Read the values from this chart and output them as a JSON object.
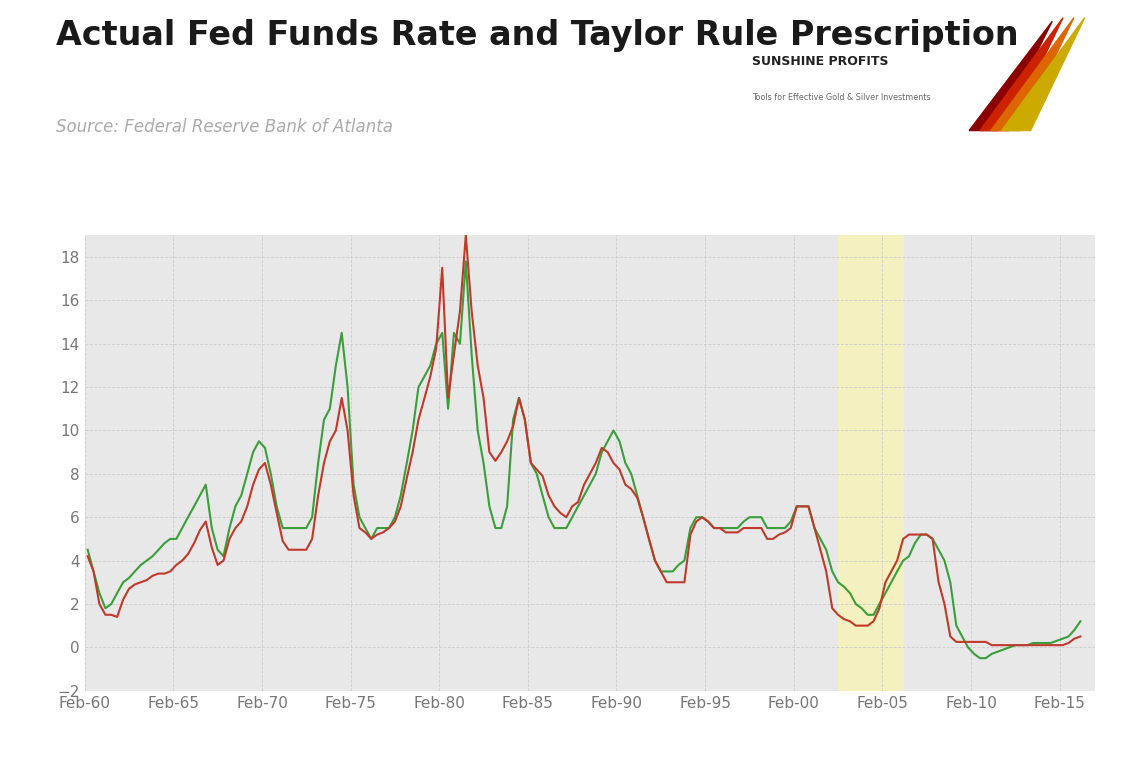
{
  "title": "Actual Fed Funds Rate and Taylor Rule Prescription",
  "subtitle": "Source: Federal Reserve Bank of Atlanta",
  "title_fontsize": 24,
  "subtitle_fontsize": 12,
  "plot_bg_color": "#e8e8e8",
  "fed_color": "#c0392b",
  "taylor_color": "#3a9e3a",
  "ylim": [
    -2,
    19
  ],
  "yticks": [
    -2,
    0,
    2,
    4,
    6,
    8,
    10,
    12,
    14,
    16,
    18
  ],
  "highlight_x_start": 2002.5,
  "highlight_x_end": 2006.2,
  "highlight_color": "#f5f0c0",
  "years": [
    1960.17,
    1960.5,
    1960.83,
    1961.17,
    1961.5,
    1961.83,
    1962.17,
    1962.5,
    1962.83,
    1963.17,
    1963.5,
    1963.83,
    1964.17,
    1964.5,
    1964.83,
    1965.17,
    1965.5,
    1965.83,
    1966.17,
    1966.5,
    1966.83,
    1967.17,
    1967.5,
    1967.83,
    1968.17,
    1968.5,
    1968.83,
    1969.17,
    1969.5,
    1969.83,
    1970.17,
    1970.5,
    1970.83,
    1971.17,
    1971.5,
    1971.83,
    1972.17,
    1972.5,
    1972.83,
    1973.17,
    1973.5,
    1973.83,
    1974.17,
    1974.5,
    1974.83,
    1975.17,
    1975.5,
    1975.83,
    1976.17,
    1976.5,
    1976.83,
    1977.17,
    1977.5,
    1977.83,
    1978.17,
    1978.5,
    1978.83,
    1979.17,
    1979.5,
    1979.83,
    1980.17,
    1980.5,
    1980.83,
    1981.17,
    1981.5,
    1981.83,
    1982.17,
    1982.5,
    1982.83,
    1983.17,
    1983.5,
    1983.83,
    1984.17,
    1984.5,
    1984.83,
    1985.17,
    1985.5,
    1985.83,
    1986.17,
    1986.5,
    1986.83,
    1987.17,
    1987.5,
    1987.83,
    1988.17,
    1988.5,
    1988.83,
    1989.17,
    1989.5,
    1989.83,
    1990.17,
    1990.5,
    1990.83,
    1991.17,
    1991.5,
    1991.83,
    1992.17,
    1992.5,
    1992.83,
    1993.17,
    1993.5,
    1993.83,
    1994.17,
    1994.5,
    1994.83,
    1995.17,
    1995.5,
    1995.83,
    1996.17,
    1996.5,
    1996.83,
    1997.17,
    1997.5,
    1997.83,
    1998.17,
    1998.5,
    1998.83,
    1999.17,
    1999.5,
    1999.83,
    2000.17,
    2000.5,
    2000.83,
    2001.17,
    2001.5,
    2001.83,
    2002.17,
    2002.5,
    2002.83,
    2003.17,
    2003.5,
    2003.83,
    2004.17,
    2004.5,
    2004.83,
    2005.17,
    2005.5,
    2005.83,
    2006.17,
    2006.5,
    2006.83,
    2007.17,
    2007.5,
    2007.83,
    2008.17,
    2008.5,
    2008.83,
    2009.17,
    2009.5,
    2009.83,
    2010.17,
    2010.5,
    2010.83,
    2011.17,
    2011.5,
    2011.83,
    2012.17,
    2012.5,
    2012.83,
    2013.17,
    2013.5,
    2013.83,
    2014.17,
    2014.5,
    2014.83,
    2015.17,
    2015.5,
    2015.83,
    2016.17
  ],
  "fed_funds": [
    4.2,
    3.5,
    2.0,
    1.5,
    1.5,
    1.4,
    2.2,
    2.7,
    2.9,
    3.0,
    3.1,
    3.3,
    3.4,
    3.4,
    3.5,
    3.8,
    4.0,
    4.3,
    4.8,
    5.4,
    5.8,
    4.6,
    3.8,
    4.0,
    5.0,
    5.5,
    5.8,
    6.5,
    7.5,
    8.2,
    8.5,
    7.5,
    6.2,
    4.9,
    4.5,
    4.5,
    4.5,
    4.5,
    5.0,
    7.0,
    8.5,
    9.5,
    10.0,
    11.5,
    10.0,
    7.0,
    5.5,
    5.3,
    5.0,
    5.2,
    5.3,
    5.5,
    5.8,
    6.5,
    7.8,
    9.0,
    10.5,
    11.5,
    12.5,
    13.8,
    17.5,
    11.5,
    13.5,
    15.5,
    19.0,
    15.5,
    13.0,
    11.5,
    9.0,
    8.6,
    9.0,
    9.5,
    10.2,
    11.5,
    10.5,
    8.5,
    8.2,
    7.9,
    7.0,
    6.5,
    6.2,
    6.0,
    6.5,
    6.7,
    7.5,
    8.0,
    8.5,
    9.2,
    9.0,
    8.5,
    8.2,
    7.5,
    7.3,
    6.9,
    6.0,
    5.0,
    4.0,
    3.5,
    3.0,
    3.0,
    3.0,
    3.0,
    5.2,
    5.8,
    6.0,
    5.8,
    5.5,
    5.5,
    5.3,
    5.3,
    5.3,
    5.5,
    5.5,
    5.5,
    5.5,
    5.0,
    5.0,
    5.2,
    5.3,
    5.5,
    6.5,
    6.5,
    6.5,
    5.5,
    4.5,
    3.5,
    1.8,
    1.5,
    1.3,
    1.2,
    1.0,
    1.0,
    1.0,
    1.2,
    1.8,
    3.0,
    3.5,
    4.0,
    5.0,
    5.2,
    5.2,
    5.2,
    5.2,
    5.0,
    3.0,
    2.0,
    0.5,
    0.25,
    0.25,
    0.25,
    0.25,
    0.25,
    0.25,
    0.1,
    0.1,
    0.1,
    0.1,
    0.1,
    0.1,
    0.1,
    0.1,
    0.1,
    0.1,
    0.1,
    0.1,
    0.1,
    0.2,
    0.4,
    0.5
  ],
  "taylor_rule": [
    4.5,
    3.5,
    2.5,
    1.8,
    2.0,
    2.5,
    3.0,
    3.2,
    3.5,
    3.8,
    4.0,
    4.2,
    4.5,
    4.8,
    5.0,
    5.0,
    5.5,
    6.0,
    6.5,
    7.0,
    7.5,
    5.5,
    4.5,
    4.2,
    5.5,
    6.5,
    7.0,
    8.0,
    9.0,
    9.5,
    9.2,
    8.0,
    6.5,
    5.5,
    5.5,
    5.5,
    5.5,
    5.5,
    6.0,
    8.5,
    10.5,
    11.0,
    13.0,
    14.5,
    12.0,
    7.5,
    6.0,
    5.5,
    5.0,
    5.5,
    5.5,
    5.5,
    6.0,
    7.0,
    8.5,
    10.0,
    12.0,
    12.5,
    13.0,
    14.0,
    14.5,
    11.0,
    14.5,
    14.0,
    17.8,
    13.5,
    10.0,
    8.5,
    6.5,
    5.5,
    5.5,
    6.5,
    10.5,
    11.5,
    10.5,
    8.5,
    8.0,
    7.0,
    6.0,
    5.5,
    5.5,
    5.5,
    6.0,
    6.5,
    7.0,
    7.5,
    8.0,
    9.0,
    9.5,
    10.0,
    9.5,
    8.5,
    8.0,
    7.0,
    6.0,
    5.0,
    4.0,
    3.5,
    3.5,
    3.5,
    3.8,
    4.0,
    5.5,
    6.0,
    6.0,
    5.8,
    5.5,
    5.5,
    5.5,
    5.5,
    5.5,
    5.8,
    6.0,
    6.0,
    6.0,
    5.5,
    5.5,
    5.5,
    5.5,
    5.8,
    6.5,
    6.5,
    6.5,
    5.5,
    5.0,
    4.5,
    3.5,
    3.0,
    2.8,
    2.5,
    2.0,
    1.8,
    1.5,
    1.5,
    2.0,
    2.5,
    3.0,
    3.5,
    4.0,
    4.2,
    4.8,
    5.2,
    5.2,
    5.0,
    4.5,
    4.0,
    3.0,
    1.0,
    0.5,
    0.0,
    -0.3,
    -0.5,
    -0.5,
    -0.3,
    -0.2,
    -0.1,
    0.0,
    0.1,
    0.1,
    0.1,
    0.2,
    0.2,
    0.2,
    0.2,
    0.3,
    0.4,
    0.5,
    0.8,
    1.2
  ],
  "xtick_labels": [
    "Feb-60",
    "Feb-65",
    "Feb-70",
    "Feb-75",
    "Feb-80",
    "Feb-85",
    "Feb-90",
    "Feb-95",
    "Feb-00",
    "Feb-05",
    "Feb-10",
    "Feb-15"
  ],
  "xtick_positions": [
    1960,
    1965,
    1970,
    1975,
    1980,
    1985,
    1990,
    1995,
    2000,
    2005,
    2010,
    2015
  ]
}
